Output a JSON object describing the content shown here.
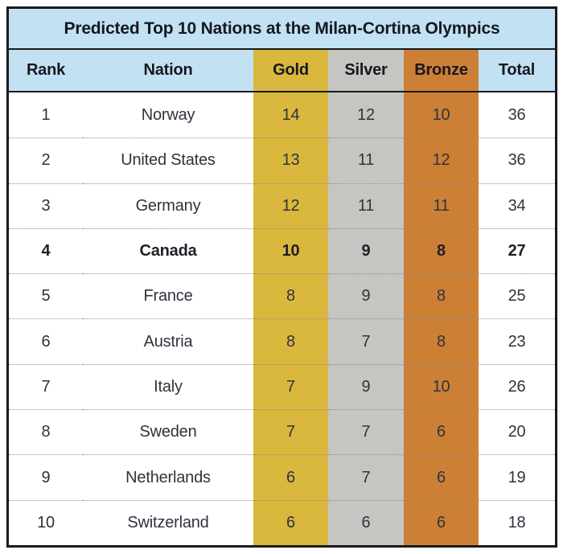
{
  "title": "Predicted Top 10 Nations at the Milan-Cortina Olympics",
  "table": {
    "columns": [
      {
        "key": "rank",
        "label": "Rank"
      },
      {
        "key": "nation",
        "label": "Nation"
      },
      {
        "key": "gold",
        "label": "Gold"
      },
      {
        "key": "silver",
        "label": "Silver"
      },
      {
        "key": "bronze",
        "label": "Bronze"
      },
      {
        "key": "total",
        "label": "Total"
      }
    ],
    "rows": [
      {
        "rank": "1",
        "nation": "Norway",
        "gold": "14",
        "silver": "12",
        "bronze": "10",
        "total": "36",
        "emphasis": false
      },
      {
        "rank": "2",
        "nation": "United States",
        "gold": "13",
        "silver": "11",
        "bronze": "12",
        "total": "36",
        "emphasis": false
      },
      {
        "rank": "3",
        "nation": "Germany",
        "gold": "12",
        "silver": "11",
        "bronze": "11",
        "total": "34",
        "emphasis": false
      },
      {
        "rank": "4",
        "nation": "Canada",
        "gold": "10",
        "silver": "9",
        "bronze": "8",
        "total": "27",
        "emphasis": true
      },
      {
        "rank": "5",
        "nation": "France",
        "gold": "8",
        "silver": "9",
        "bronze": "8",
        "total": "25",
        "emphasis": false
      },
      {
        "rank": "6",
        "nation": "Austria",
        "gold": "8",
        "silver": "7",
        "bronze": "8",
        "total": "23",
        "emphasis": false
      },
      {
        "rank": "7",
        "nation": "Italy",
        "gold": "7",
        "silver": "9",
        "bronze": "10",
        "total": "26",
        "emphasis": false
      },
      {
        "rank": "8",
        "nation": "Sweden",
        "gold": "7",
        "silver": "7",
        "bronze": "6",
        "total": "20",
        "emphasis": false
      },
      {
        "rank": "9",
        "nation": "Netherlands",
        "gold": "6",
        "silver": "7",
        "bronze": "6",
        "total": "19",
        "emphasis": false
      },
      {
        "rank": "10",
        "nation": "Switzerland",
        "gold": "6",
        "silver": "6",
        "bronze": "6",
        "total": "18",
        "emphasis": false
      }
    ]
  },
  "colors": {
    "header_blue": "#c2e2f3",
    "gold": "#d9b83d",
    "silver": "#c7c5c2",
    "bronze": "#cc8036",
    "border": "#1a1a1a",
    "text": "#32323e"
  },
  "chart_data": {
    "type": "table",
    "title": "Predicted Top 10 Nations at the Milan-Cortina Olympics",
    "columns": [
      "Rank",
      "Nation",
      "Gold",
      "Silver",
      "Bronze",
      "Total"
    ],
    "rows": [
      [
        1,
        "Norway",
        14,
        12,
        10,
        36
      ],
      [
        2,
        "United States",
        13,
        11,
        12,
        36
      ],
      [
        3,
        "Germany",
        12,
        11,
        11,
        34
      ],
      [
        4,
        "Canada",
        10,
        9,
        8,
        27
      ],
      [
        5,
        "France",
        8,
        9,
        8,
        25
      ],
      [
        6,
        "Austria",
        8,
        7,
        8,
        23
      ],
      [
        7,
        "Italy",
        7,
        9,
        10,
        26
      ],
      [
        8,
        "Sweden",
        7,
        7,
        6,
        20
      ],
      [
        9,
        "Netherlands",
        6,
        7,
        6,
        19
      ],
      [
        10,
        "Switzerland",
        6,
        6,
        6,
        18
      ]
    ],
    "highlighted_row": "Canada",
    "column_fill_colors": {
      "Gold": "#d9b83d",
      "Silver": "#c7c5c2",
      "Bronze": "#cc8036"
    }
  }
}
